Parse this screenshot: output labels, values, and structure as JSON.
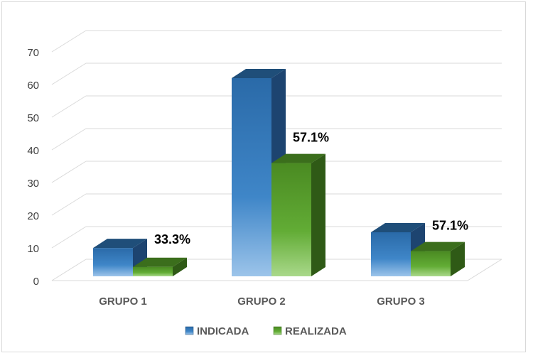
{
  "chart_data": {
    "type": "bar",
    "categories": [
      "GRUPO 1",
      "GRUPO 2",
      "GRUPO 3"
    ],
    "series": [
      {
        "name": "INDICADA",
        "values": [
          9,
          63,
          14
        ],
        "color": "#2e75b6"
      },
      {
        "name": "REALIZADA",
        "values": [
          3,
          36,
          8
        ],
        "color": "#5aa02c"
      }
    ],
    "data_labels": [
      {
        "category": "GRUPO 1",
        "text": "33.3%"
      },
      {
        "category": "GRUPO 2",
        "text": "57.1%"
      },
      {
        "category": "GRUPO 3",
        "text": "57.1%"
      }
    ],
    "y_ticks": [
      "0",
      "10",
      "20",
      "30",
      "40",
      "50",
      "60",
      "70"
    ],
    "ylim": [
      0,
      70
    ],
    "grid": true,
    "style": "3d-clustered-column",
    "legend_position": "bottom"
  }
}
